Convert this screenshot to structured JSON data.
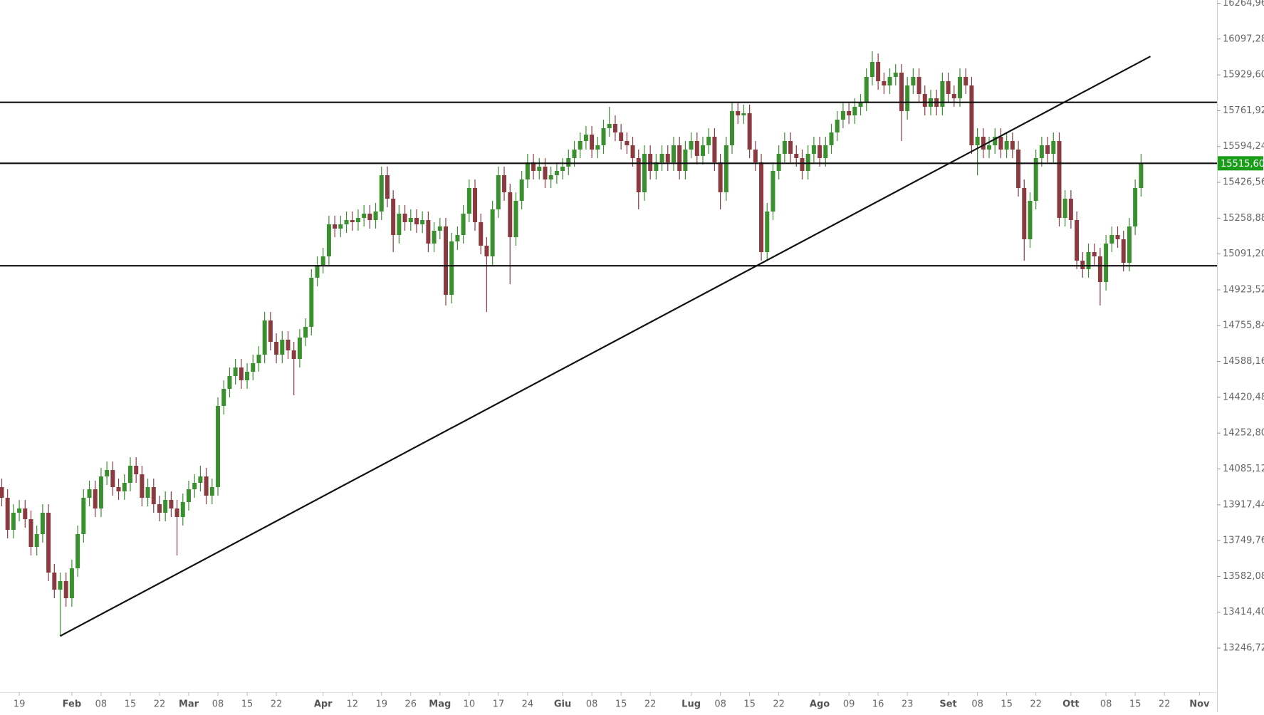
{
  "chart_data": {
    "type": "candlestick",
    "colors": {
      "up": "#3a8f2f",
      "down": "#8b3a3f",
      "last_price": "#1a9e1a"
    },
    "ylim": [
      13060,
      16280
    ],
    "yticks": [
      {
        "value": 16264.96,
        "label": "16264,96"
      },
      {
        "value": 16097.28,
        "label": "16097,28"
      },
      {
        "value": 15929.6,
        "label": "15929,60"
      },
      {
        "value": 15761.92,
        "label": "15761,92"
      },
      {
        "value": 15594.24,
        "label": "15594,24"
      },
      {
        "value": 15426.56,
        "label": "15426,56"
      },
      {
        "value": 15258.88,
        "label": "15258,88"
      },
      {
        "value": 15091.2,
        "label": "15091,20"
      },
      {
        "value": 14923.52,
        "label": "14923,52"
      },
      {
        "value": 14755.84,
        "label": "14755,84"
      },
      {
        "value": 14588.16,
        "label": "14588,16"
      },
      {
        "value": 14420.48,
        "label": "14420,48"
      },
      {
        "value": 14252.8,
        "label": "14252,80"
      },
      {
        "value": 14085.12,
        "label": "14085,12"
      },
      {
        "value": 13917.44,
        "label": "13917,44"
      },
      {
        "value": 13749.76,
        "label": "13749,76"
      },
      {
        "value": 13582.08,
        "label": "13582,08"
      },
      {
        "value": 13414.4,
        "label": "13414,40"
      },
      {
        "value": 13246.72,
        "label": "13246,72"
      }
    ],
    "xlim": [
      -0.3,
      208
    ],
    "xticks": [
      {
        "value": 3,
        "label": "19"
      },
      {
        "value": 12,
        "label": "Feb"
      },
      {
        "value": 17,
        "label": "08"
      },
      {
        "value": 22,
        "label": "15"
      },
      {
        "value": 27,
        "label": "22"
      },
      {
        "value": 32,
        "label": "Mar"
      },
      {
        "value": 37,
        "label": "08"
      },
      {
        "value": 42,
        "label": "15"
      },
      {
        "value": 47,
        "label": "22"
      },
      {
        "value": 55,
        "label": "Apr"
      },
      {
        "value": 60,
        "label": "12"
      },
      {
        "value": 65,
        "label": "19"
      },
      {
        "value": 70,
        "label": "26"
      },
      {
        "value": 75,
        "label": "Mag"
      },
      {
        "value": 80,
        "label": "10"
      },
      {
        "value": 85,
        "label": "17"
      },
      {
        "value": 90,
        "label": "24"
      },
      {
        "value": 96,
        "label": "Giu"
      },
      {
        "value": 101,
        "label": "08"
      },
      {
        "value": 106,
        "label": "15"
      },
      {
        "value": 111,
        "label": "22"
      },
      {
        "value": 118,
        "label": "Lug"
      },
      {
        "value": 123,
        "label": "08"
      },
      {
        "value": 128,
        "label": "15"
      },
      {
        "value": 133,
        "label": "22"
      },
      {
        "value": 140,
        "label": "Ago"
      },
      {
        "value": 145,
        "label": "09"
      },
      {
        "value": 150,
        "label": "16"
      },
      {
        "value": 155,
        "label": "23"
      },
      {
        "value": 162,
        "label": "Set"
      },
      {
        "value": 167,
        "label": "08"
      },
      {
        "value": 172,
        "label": "15"
      },
      {
        "value": 177,
        "label": "22"
      },
      {
        "value": 183,
        "label": "Ott"
      },
      {
        "value": 189,
        "label": "08"
      },
      {
        "value": 194,
        "label": "15"
      },
      {
        "value": 199,
        "label": "22"
      },
      {
        "value": 205,
        "label": "Nov"
      }
    ],
    "open": [
      14000,
      13950,
      13800,
      13880,
      13900,
      13850,
      13720,
      13780,
      13880,
      13600,
      13520,
      13560,
      13480,
      13620,
      13780,
      13950,
      13990,
      13900,
      14050,
      14080,
      14000,
      13980,
      14020,
      14100,
      14060,
      13950,
      14000,
      13920,
      13880,
      13940,
      13900,
      13860,
      13930,
      13990,
      14020,
      14050,
      13960,
      14000,
      14380,
      14460,
      14520,
      14560,
      14500,
      14540,
      14580,
      14620,
      14780,
      14680,
      14620,
      14690,
      14640,
      14600,
      14700,
      14750,
      14980,
      15040,
      15080,
      15230,
      15210,
      15230,
      15250,
      15240,
      15260,
      15280,
      15250,
      15290,
      15460,
      15350,
      15180,
      15280,
      15240,
      15260,
      15230,
      15250,
      15140,
      15200,
      15220,
      14900,
      15150,
      15180,
      15280,
      15400,
      15240,
      15130,
      15080,
      15300,
      15460,
      15380,
      15170,
      15340,
      15440,
      15520,
      15480,
      15500,
      15440,
      15460,
      15480,
      15500,
      15540,
      15580,
      15620,
      15650,
      15580,
      15600,
      15680,
      15700,
      15660,
      15620,
      15600,
      15540,
      15380,
      15560,
      15480,
      15520,
      15560,
      15520,
      15600,
      15480,
      15580,
      15620,
      15550,
      15600,
      15640,
      15520,
      15380,
      15600,
      15760,
      15740,
      15750,
      15580,
      15520,
      15100,
      15290,
      15480,
      15560,
      15620,
      15560,
      15540,
      15480,
      15560,
      15600,
      15540,
      15600,
      15660,
      15720,
      15760,
      15740,
      15780,
      15800,
      15920,
      15990,
      15900,
      15880,
      15920,
      15940,
      15760,
      15880,
      15920,
      15840,
      15780,
      15820,
      15780,
      15900,
      15840,
      15820,
      15920,
      15880,
      15600,
      15640,
      15580,
      15600,
      15640,
      15580,
      15620,
      15580,
      15400,
      15160,
      15340,
      15540,
      15600,
      15560,
      15620,
      15260,
      15350,
      15250,
      15060,
      15020,
      15100,
      15080,
      14960,
      15140,
      15180,
      15160,
      15050,
      15220,
      15400
    ],
    "high": [
      14040,
      13990,
      13920,
      13940,
      13940,
      13890,
      13820,
      13920,
      13920,
      13640,
      13600,
      13600,
      13660,
      13820,
      13990,
      14030,
      14030,
      14090,
      14120,
      14120,
      14040,
      14060,
      14140,
      14140,
      14100,
      14040,
      14040,
      13960,
      13980,
      13980,
      13940,
      13970,
      14030,
      14060,
      14100,
      14090,
      14040,
      14420,
      14500,
      14560,
      14600,
      14600,
      14580,
      14620,
      14660,
      14820,
      14820,
      14720,
      14730,
      14730,
      14680,
      14740,
      14790,
      15020,
      15080,
      15120,
      15270,
      15270,
      15270,
      15290,
      15290,
      15300,
      15320,
      15320,
      15330,
      15500,
      15500,
      15390,
      15320,
      15320,
      15300,
      15300,
      15290,
      15290,
      15240,
      15260,
      15260,
      15190,
      15220,
      15320,
      15440,
      15440,
      15280,
      15170,
      15340,
      15500,
      15500,
      15420,
      15380,
      15480,
      15560,
      15560,
      15540,
      15540,
      15500,
      15520,
      15540,
      15580,
      15620,
      15660,
      15690,
      15690,
      15640,
      15720,
      15780,
      15740,
      15700,
      15660,
      15640,
      15580,
      15600,
      15600,
      15560,
      15600,
      15600,
      15640,
      15640,
      15620,
      15660,
      15660,
      15640,
      15680,
      15680,
      15560,
      15640,
      15800,
      15800,
      15790,
      15790,
      15620,
      15560,
      15330,
      15520,
      15600,
      15660,
      15660,
      15600,
      15580,
      15600,
      15640,
      15640,
      15640,
      15700,
      15760,
      15800,
      15800,
      15820,
      15840,
      15960,
      16040,
      16030,
      15940,
      15960,
      15980,
      15980,
      15920,
      15960,
      15960,
      15880,
      15860,
      15860,
      15940,
      15940,
      15880,
      15960,
      15960,
      15920,
      15680,
      15680,
      15640,
      15680,
      15680,
      15660,
      15660,
      15620,
      15440,
      15380,
      15580,
      15640,
      15640,
      15660,
      15660,
      15390,
      15390,
      15290,
      15100,
      15140,
      15140,
      15120,
      15180,
      15220,
      15220,
      15200,
      15260,
      15440,
      15560
    ],
    "low": [
      13910,
      13760,
      13760,
      13840,
      13810,
      13680,
      13680,
      13740,
      13560,
      13480,
      13303,
      13440,
      13440,
      13580,
      13740,
      13910,
      13860,
      13860,
      14010,
      13960,
      13940,
      13940,
      13980,
      14020,
      13910,
      13910,
      13880,
      13840,
      13840,
      13860,
      13680,
      13820,
      13890,
      13950,
      13980,
      13920,
      13920,
      13960,
      14340,
      14420,
      14480,
      14460,
      14460,
      14500,
      14540,
      14580,
      14640,
      14580,
      14580,
      14600,
      14430,
      14560,
      14660,
      14710,
      14940,
      15000,
      15040,
      15170,
      15170,
      15190,
      15200,
      15200,
      15220,
      15210,
      15210,
      15250,
      15310,
      15100,
      15140,
      15200,
      15200,
      15190,
      15190,
      15100,
      15100,
      15160,
      14850,
      14860,
      15110,
      15140,
      15240,
      15200,
      15090,
      14820,
      15040,
      15260,
      15340,
      14950,
      15130,
      15300,
      15400,
      15440,
      15440,
      15400,
      15400,
      15420,
      15440,
      15460,
      15500,
      15540,
      15580,
      15540,
      15540,
      15560,
      15640,
      15620,
      15580,
      15560,
      15500,
      15300,
      15340,
      15440,
      15440,
      15480,
      15480,
      15480,
      15440,
      15440,
      15540,
      15510,
      15510,
      15560,
      15480,
      15300,
      15340,
      15560,
      15700,
      15700,
      15540,
      15480,
      15060,
      15060,
      15250,
      15440,
      15520,
      15520,
      15500,
      15440,
      15440,
      15520,
      15500,
      15500,
      15560,
      15620,
      15680,
      15700,
      15700,
      15740,
      15760,
      15880,
      15860,
      15840,
      15840,
      15880,
      15620,
      15720,
      15840,
      15800,
      15740,
      15740,
      15740,
      15740,
      15800,
      15780,
      15780,
      15840,
      15560,
      15460,
      15540,
      15540,
      15560,
      15540,
      15540,
      15540,
      15360,
      15060,
      15120,
      15300,
      15500,
      15520,
      15520,
      15220,
      15220,
      15210,
      15020,
      14980,
      14980,
      15040,
      14850,
      14920,
      15100,
      15120,
      15010,
      15010,
      15180,
      15360
    ],
    "close": [
      13950,
      13800,
      13880,
      13900,
      13850,
      13720,
      13780,
      13880,
      13600,
      13520,
      13560,
      13480,
      13620,
      13780,
      13950,
      13990,
      13900,
      14050,
      14080,
      14000,
      13980,
      14020,
      14100,
      14060,
      13950,
      14000,
      13920,
      13880,
      13940,
      13900,
      13860,
      13930,
      13990,
      14020,
      14050,
      13960,
      14000,
      14380,
      14460,
      14520,
      14560,
      14500,
      14540,
      14580,
      14620,
      14780,
      14680,
      14620,
      14690,
      14640,
      14600,
      14700,
      14750,
      14980,
      15040,
      15080,
      15230,
      15210,
      15230,
      15250,
      15240,
      15260,
      15280,
      15250,
      15290,
      15460,
      15350,
      15180,
      15280,
      15240,
      15260,
      15230,
      15250,
      15140,
      15200,
      15220,
      14900,
      15150,
      15180,
      15280,
      15400,
      15240,
      15130,
      15080,
      15300,
      15460,
      15380,
      15170,
      15340,
      15440,
      15520,
      15480,
      15500,
      15440,
      15460,
      15480,
      15500,
      15540,
      15580,
      15620,
      15650,
      15580,
      15600,
      15680,
      15700,
      15660,
      15620,
      15600,
      15540,
      15380,
      15560,
      15480,
      15520,
      15560,
      15520,
      15600,
      15480,
      15580,
      15620,
      15550,
      15600,
      15640,
      15520,
      15380,
      15600,
      15760,
      15740,
      15750,
      15580,
      15520,
      15100,
      15290,
      15480,
      15560,
      15620,
      15560,
      15540,
      15480,
      15560,
      15600,
      15540,
      15600,
      15660,
      15720,
      15760,
      15740,
      15780,
      15800,
      15920,
      15990,
      15900,
      15880,
      15920,
      15940,
      15760,
      15880,
      15920,
      15840,
      15780,
      15820,
      15780,
      15900,
      15840,
      15820,
      15920,
      15880,
      15600,
      15640,
      15580,
      15600,
      15640,
      15580,
      15620,
      15580,
      15400,
      15160,
      15340,
      15540,
      15600,
      15560,
      15620,
      15260,
      15350,
      15250,
      15060,
      15020,
      15100,
      15080,
      14960,
      15140,
      15180,
      15160,
      15050,
      15220,
      15400,
      15515.6
    ],
    "last_price_label": "15515,60",
    "levels": [
      15801,
      15515.6,
      15036
    ],
    "trendline": {
      "x": [
        10,
        196.6
      ],
      "y": [
        13303,
        16016
      ]
    }
  }
}
